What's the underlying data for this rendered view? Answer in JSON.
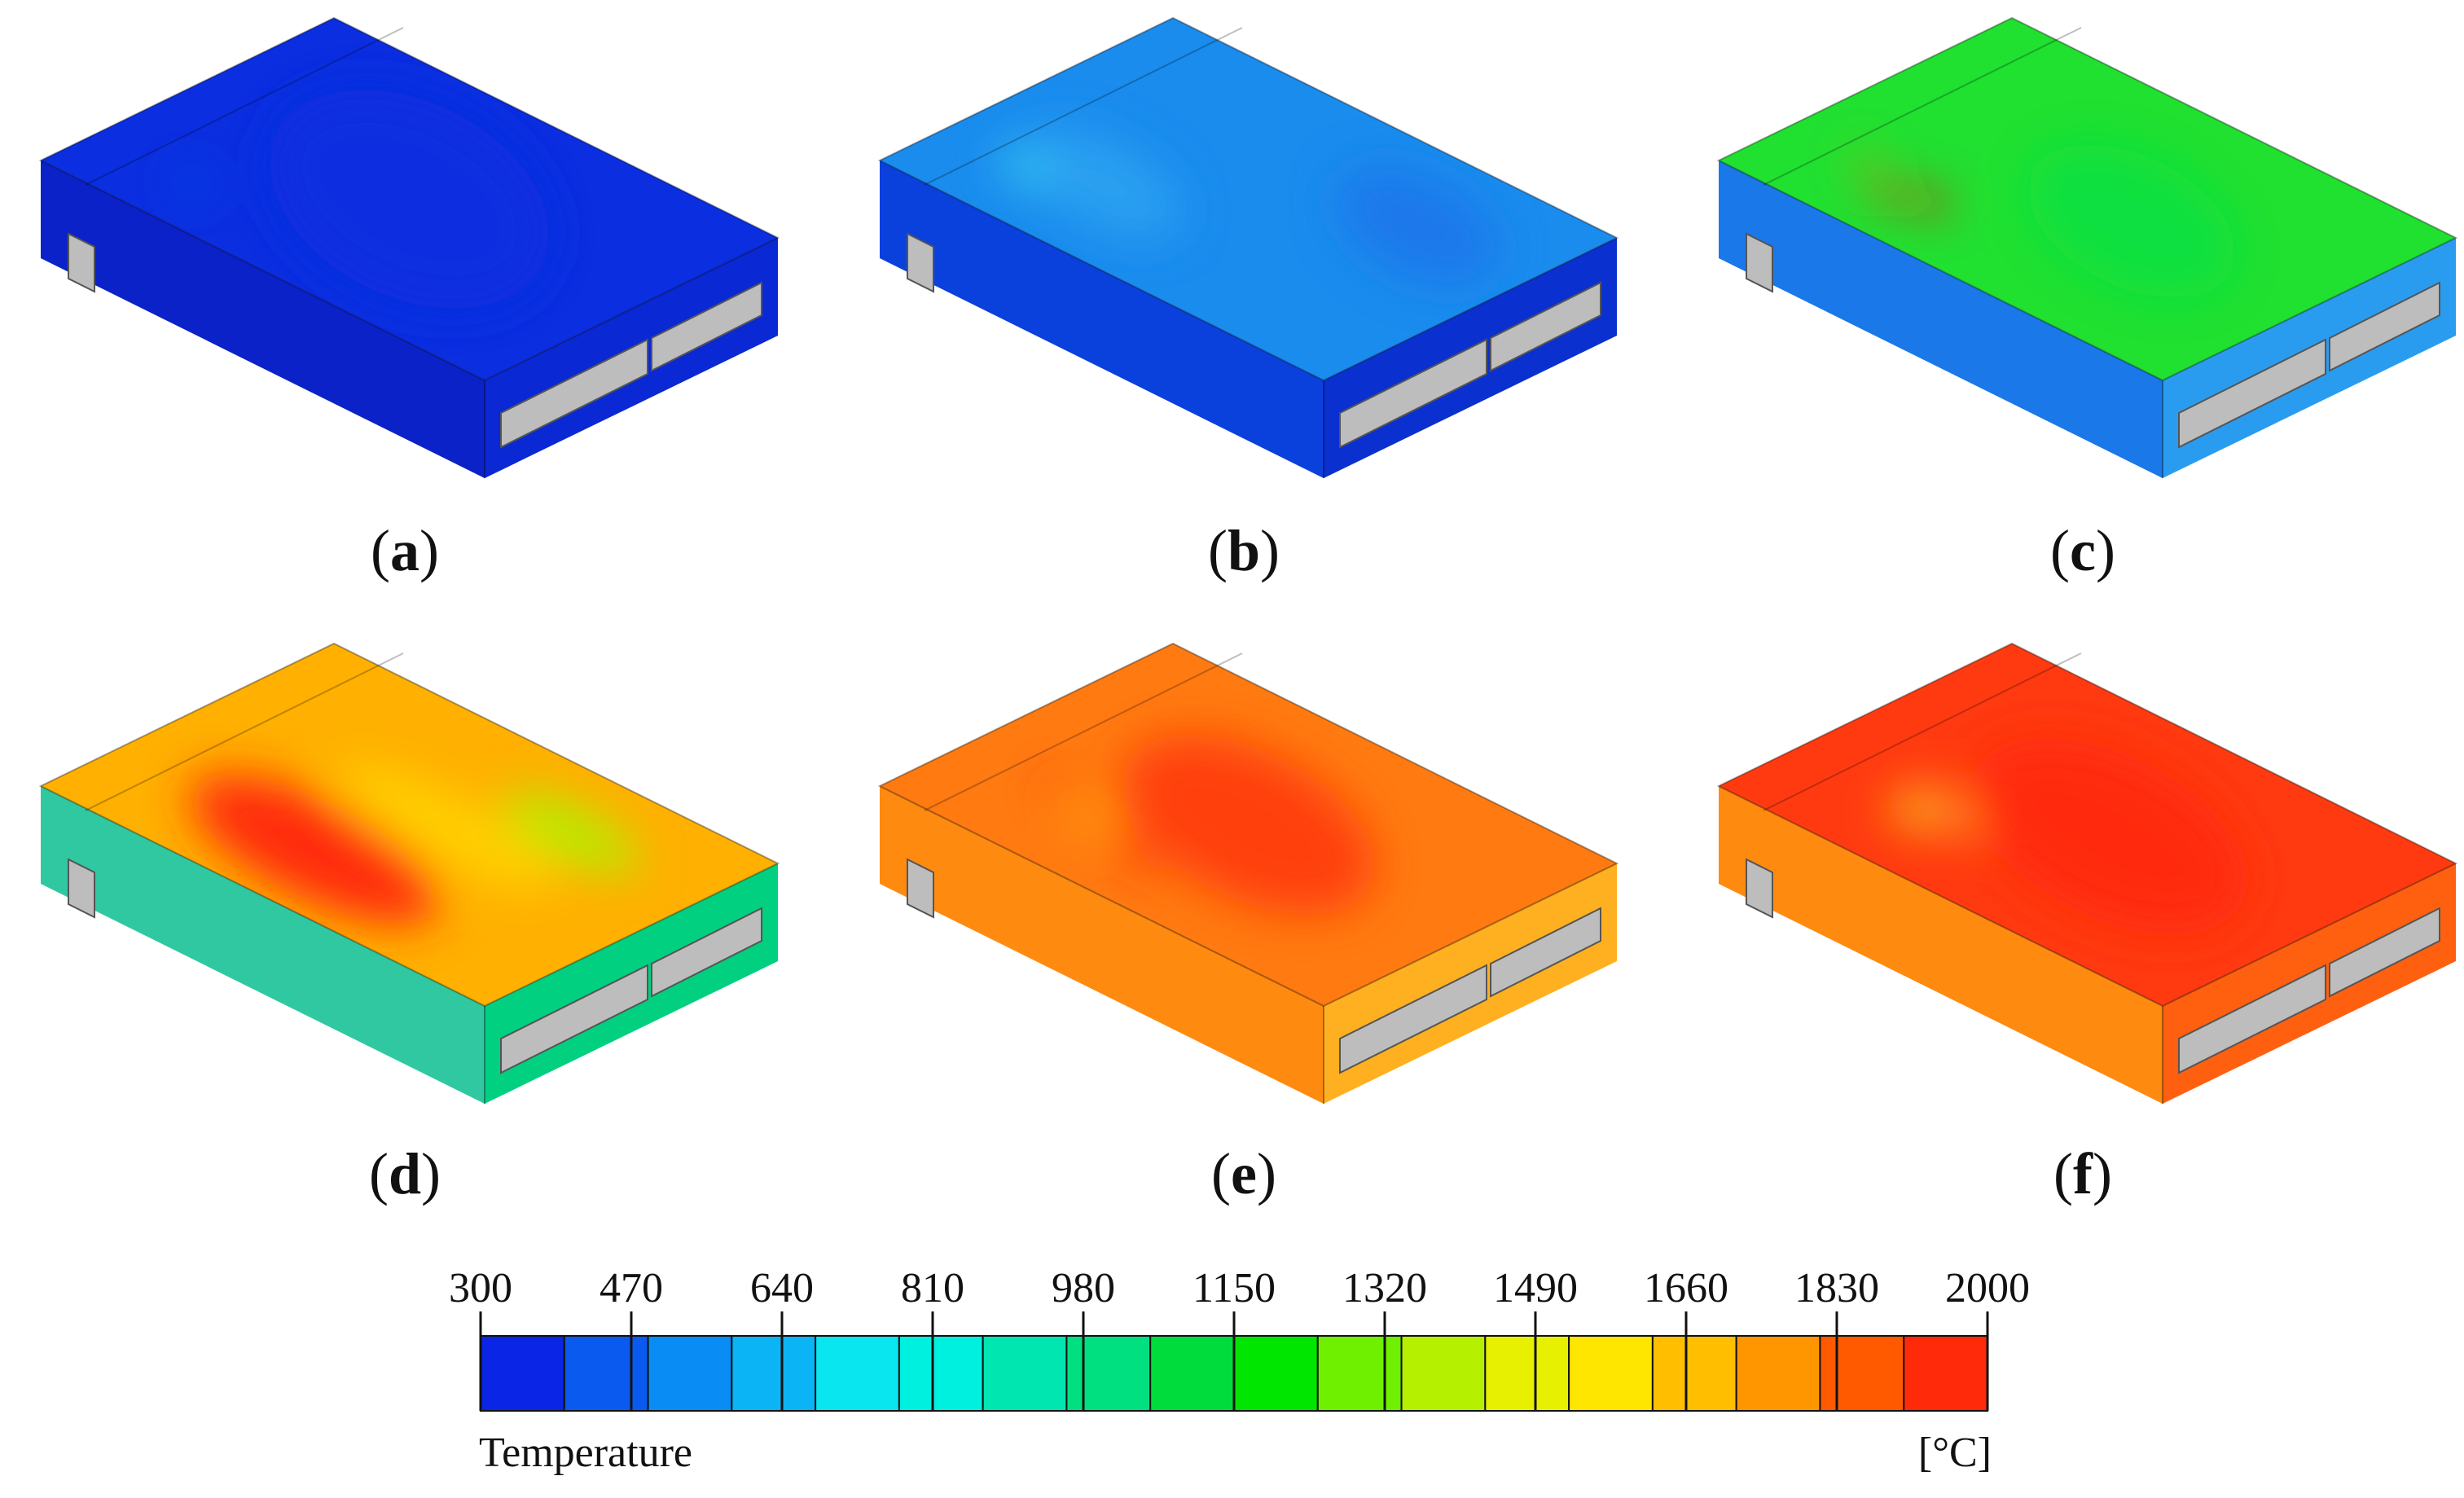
{
  "panels": [
    {
      "id": "a",
      "letter": "a",
      "open": "(",
      "close": ")",
      "stage": 0,
      "hot": [
        [
          "#0a2ee0",
          0.5,
          0.5,
          0.6,
          0.6
        ],
        [
          "#1450e8",
          0.22,
          0.18,
          0.08,
          0.06
        ]
      ]
    },
    {
      "id": "b",
      "letter": "b",
      "open": "(",
      "close": ")",
      "stage": 1,
      "hot": [
        [
          "#2aa0f0",
          0.3,
          0.3,
          0.35,
          0.25
        ],
        [
          "#39d0f0",
          0.18,
          0.22,
          0.12,
          0.08
        ],
        [
          "#1a78ea",
          0.75,
          0.7,
          0.35,
          0.3
        ]
      ]
    },
    {
      "id": "c",
      "letter": "c",
      "open": "(",
      "close": ")",
      "stage": 2,
      "hot": [
        [
          "#ff1a10",
          0.26,
          0.18,
          0.06,
          0.06
        ],
        [
          "#ff1a10",
          0.33,
          0.22,
          0.07,
          0.06
        ],
        [
          "#ff9020",
          0.17,
          0.24,
          0.05,
          0.04
        ],
        [
          "#10e040",
          0.6,
          0.5,
          0.45,
          0.4
        ]
      ]
    },
    {
      "id": "d",
      "letter": "d",
      "open": "(",
      "close": ")",
      "stage": 3,
      "hot": [
        [
          "#ff2a10",
          0.45,
          0.25,
          0.55,
          0.3
        ],
        [
          "#ffd000",
          0.55,
          0.55,
          0.5,
          0.2
        ],
        [
          "#b0f000",
          0.7,
          0.75,
          0.3,
          0.15
        ]
      ]
    },
    {
      "id": "e",
      "letter": "e",
      "open": "(",
      "close": ")",
      "stage": 4,
      "hot": [
        [
          "#ff4010",
          0.5,
          0.5,
          0.55,
          0.45
        ],
        [
          "#ff2010",
          0.2,
          0.3,
          0.06,
          0.05
        ],
        [
          "#ff2010",
          0.45,
          0.2,
          0.08,
          0.06
        ],
        [
          "#ffd000",
          0.3,
          0.25,
          0.06,
          0.05
        ]
      ]
    },
    {
      "id": "f",
      "letter": "f",
      "open": "(",
      "close": ")",
      "stage": 5,
      "hot": [
        [
          "#ff2a10",
          0.55,
          0.5,
          0.6,
          0.5
        ],
        [
          "#ff9820",
          0.3,
          0.3,
          0.18,
          0.1
        ],
        [
          "#e8f000",
          0.28,
          0.22,
          0.08,
          0.05
        ]
      ]
    }
  ],
  "colorbar": {
    "title": "Temperature",
    "unit": "[°C]",
    "min": 300,
    "max": 2000,
    "ticks": [
      "300",
      "470",
      "640",
      "810",
      "980",
      "1150",
      "1320",
      "1490",
      "1660",
      "1830",
      "2000"
    ],
    "colors": [
      "#0a25e6",
      "#0a5af0",
      "#0a8cf5",
      "#0ab4f5",
      "#0ae6f0",
      "#00f0e0",
      "#00e6b0",
      "#00e080",
      "#00dc3c",
      "#00e600",
      "#6ef000",
      "#b4f000",
      "#e6f000",
      "#ffe600",
      "#ffbe00",
      "#ff9600",
      "#ff5a00",
      "#ff2a0a"
    ]
  }
}
